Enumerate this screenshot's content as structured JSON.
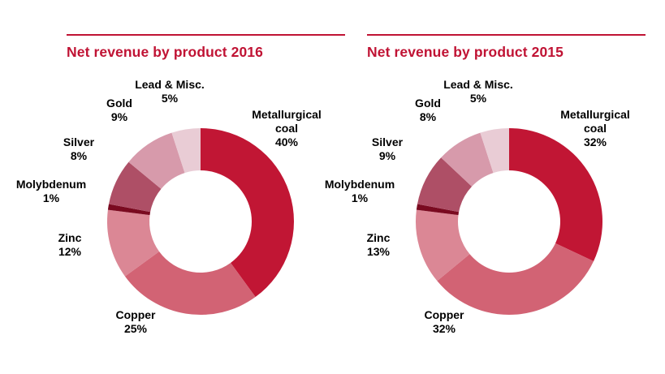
{
  "theme": {
    "accent": "#c01334",
    "label_color": "#000000",
    "background": "#ffffff"
  },
  "chart_data": [
    {
      "type": "pie",
      "subtype": "donut",
      "title": "Net revenue by product 2016",
      "title_prefix": "Net revenue by product",
      "year": "2016",
      "unit": "%",
      "start_angle": "top",
      "direction": "clockwise",
      "legend_position": "labels-around-slices",
      "categories": [
        "Metallurgical coal",
        "Copper",
        "Zinc",
        "Molybdenum",
        "Silver",
        "Gold",
        "Lead & Misc."
      ],
      "values": [
        40,
        25,
        12,
        1,
        8,
        9,
        5
      ],
      "colors": [
        "#c11634",
        "#d26374",
        "#db8795",
        "#7a0a20",
        "#ae4f66",
        "#d79aab",
        "#e9ccd5"
      ]
    },
    {
      "type": "pie",
      "subtype": "donut",
      "title": "Net revenue by product 2015",
      "title_prefix": "Net revenue by product",
      "year": "2015",
      "unit": "%",
      "start_angle": "top",
      "direction": "clockwise",
      "legend_position": "labels-around-slices",
      "categories": [
        "Metallurgical coal",
        "Copper",
        "Zinc",
        "Molybdenum",
        "Silver",
        "Gold",
        "Lead & Misc."
      ],
      "values": [
        32,
        32,
        13,
        1,
        9,
        8,
        5
      ],
      "colors": [
        "#c11634",
        "#d26374",
        "#db8795",
        "#7a0a20",
        "#ae4f66",
        "#d79aab",
        "#e9ccd5"
      ]
    }
  ]
}
